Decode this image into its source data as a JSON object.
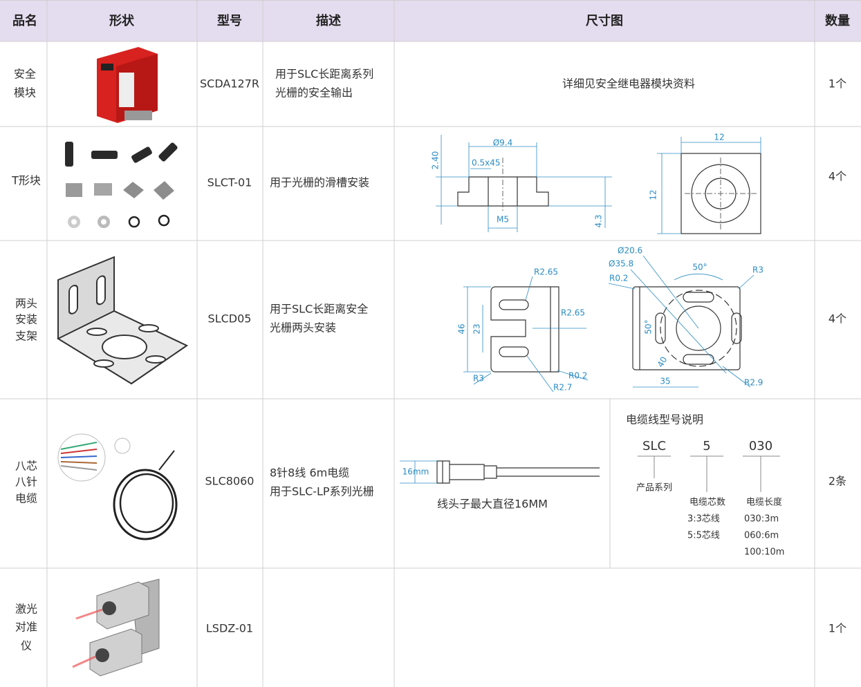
{
  "table": {
    "headers": [
      "品名",
      "形状",
      "型号",
      "描述",
      "尺寸图",
      "数量"
    ],
    "rows": [
      {
        "name": [
          "安全",
          "模块"
        ],
        "model": "SCDA127R",
        "description": [
          "用于SLC长距离系列",
          "光栅的安全输出"
        ],
        "dimension_note": "详细见安全继电器模块资料",
        "quantity": "1个"
      },
      {
        "name": [
          "T形块"
        ],
        "model": "SLCT-01",
        "description": [
          "用于光栅的滑槽安装"
        ],
        "drawing_labels": [
          "Ø9.4",
          "0.5x45",
          "2.40",
          "M5",
          "4.3",
          "12",
          "12"
        ],
        "quantity": "4个"
      },
      {
        "name": [
          "两头",
          "安装",
          "支架"
        ],
        "model": "SLCD05",
        "description": [
          "用于SLC长距离安全",
          "光栅两头安装"
        ],
        "drawing_labels": [
          "R2.65",
          "R2.65",
          "46",
          "23",
          "R3",
          "R0.2",
          "R2.7",
          "Ø20.6",
          "Ø35.8",
          "R0.2",
          "50°",
          "R3",
          "50°",
          "40",
          "35",
          "R2.9"
        ],
        "quantity": "4个"
      },
      {
        "name": [
          "八芯",
          "八针",
          "电缆"
        ],
        "model": "SLC8060",
        "description": [
          "8针8线 6m电缆",
          "用于SLC-LP系列光栅"
        ],
        "drawing_labels": [
          "16mm"
        ],
        "dimension_note": "线头子最大直径16MM",
        "cable_code": {
          "title": "电缆线型号说明",
          "parts": [
            "SLC",
            "5",
            "030"
          ],
          "series_label": "产品系列",
          "cores_label": "电缆芯数",
          "cores": [
            "3:3芯线",
            "5:5芯线"
          ],
          "length_label": "电缆长度",
          "lengths": [
            "030:3m",
            "060:6m",
            "100:10m"
          ]
        },
        "quantity": "2条"
      },
      {
        "name": [
          "激光",
          "对准",
          "仪"
        ],
        "model": "LSDZ-01",
        "quantity": "1个"
      }
    ]
  }
}
